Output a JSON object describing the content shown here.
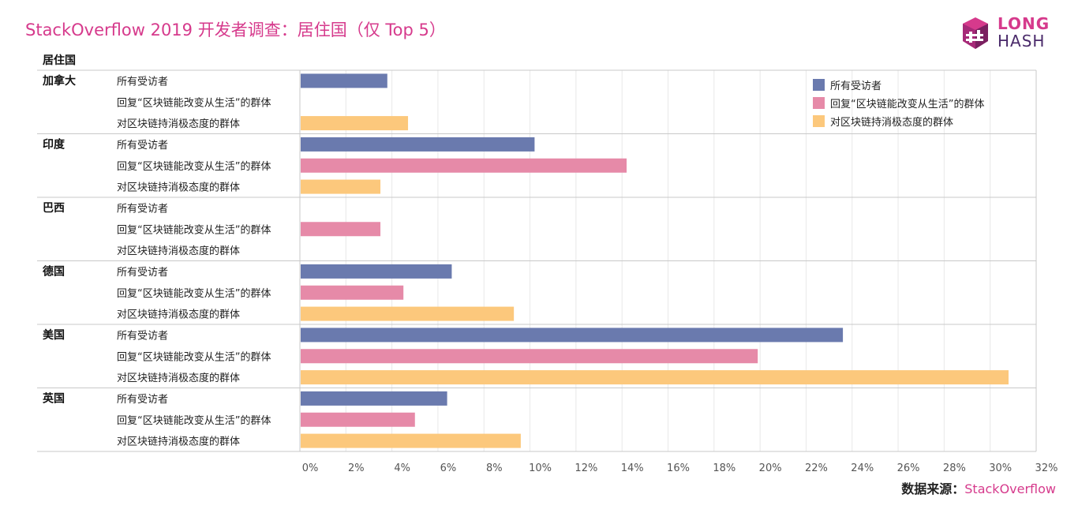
{
  "title": "StackOverflow 2019 开发者调查：居住国（仅 Top 5）",
  "logo": {
    "line1": "LONG",
    "line2": "HASH"
  },
  "source": {
    "label": "数据来源：",
    "value": "StackOverflow"
  },
  "colors": {
    "title": "#d63a8c",
    "all": "#6a7aae",
    "change": "#e68aa8",
    "negative": "#fcc87c",
    "grid": "#e8e8e8",
    "sep": "#c8c8c8"
  },
  "chart_data": {
    "type": "bar",
    "orientation": "horizontal",
    "row_header": "居住国",
    "categories": [
      "加拿大",
      "印度",
      "巴西",
      "德国",
      "美国",
      "英国"
    ],
    "series": [
      {
        "name": "所有受访者",
        "values": [
          3.8,
          10.2,
          null,
          6.6,
          23.6,
          6.4
        ]
      },
      {
        "name": "回复“区块链能改变从生活”的群体",
        "values": [
          null,
          14.2,
          3.5,
          4.5,
          19.9,
          5.0
        ]
      },
      {
        "name": "对区块链持消极态度的群体",
        "values": [
          4.7,
          3.5,
          null,
          9.3,
          30.8,
          9.6
        ]
      }
    ],
    "x_ticks": [
      "0%",
      "2%",
      "4%",
      "6%",
      "8%",
      "10%",
      "12%",
      "14%",
      "16%",
      "18%",
      "20%",
      "22%",
      "24%",
      "26%",
      "28%",
      "30%",
      "32%"
    ],
    "xlim": [
      0,
      32
    ],
    "grid": true,
    "legend_position": "top-right"
  }
}
